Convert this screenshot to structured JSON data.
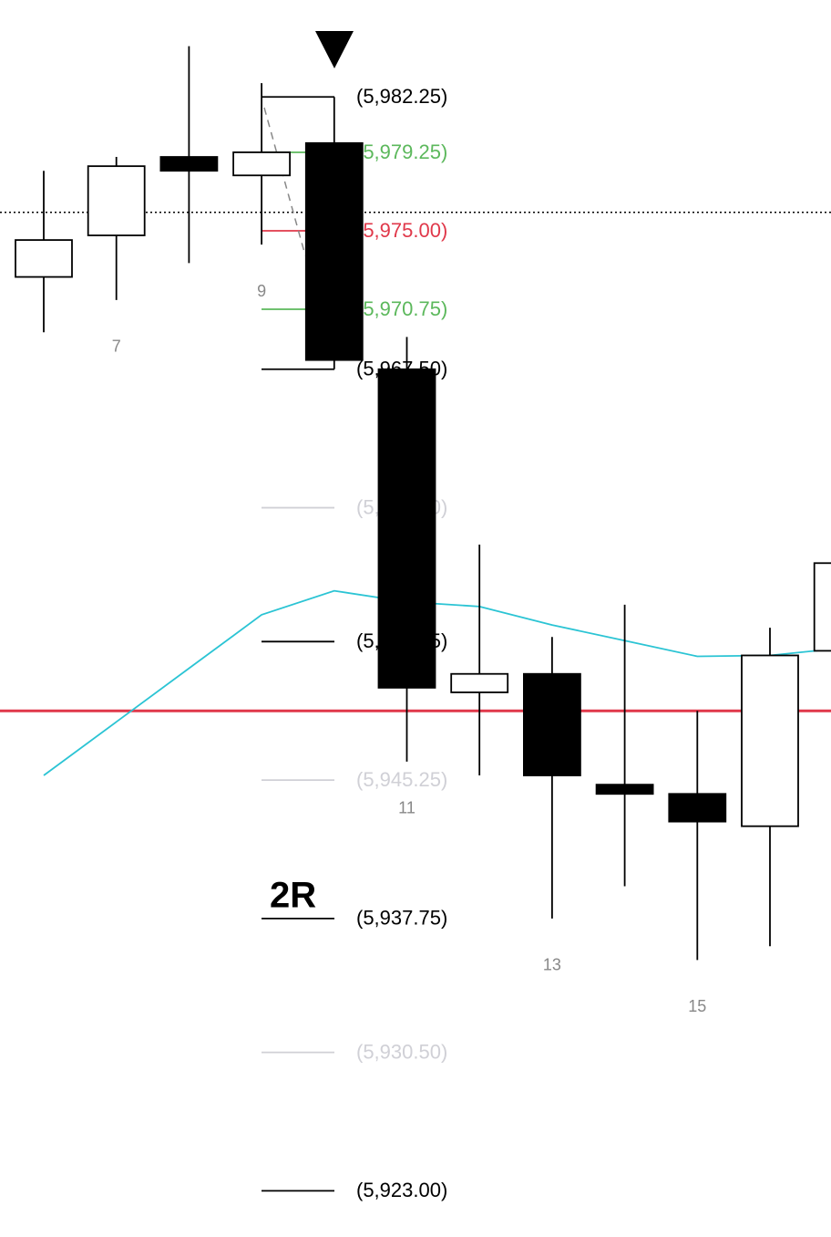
{
  "chart_data": {
    "type": "candlestick",
    "annotation": "2R",
    "ylim": [
      5920.5,
      5987.5
    ],
    "color": "#000000",
    "categories": [
      null,
      "7",
      null,
      "9",
      null,
      "11",
      null,
      "13",
      null,
      "15",
      null,
      null
    ],
    "open": [
      5972.5,
      5974.75,
      5979.0,
      5978.0,
      5979.75,
      5967.5,
      5950.0,
      5951.0,
      5945.0,
      5944.5,
      5942.75,
      5952.25
    ],
    "high": [
      5978.25,
      5979.0,
      5985.0,
      5983.0,
      5982.25,
      5969.25,
      5958.0,
      5953.0,
      5954.75,
      5949.0,
      5953.5,
      5957.0
    ],
    "low": [
      5969.5,
      5971.25,
      5973.25,
      5974.25,
      5967.5,
      5946.25,
      5945.5,
      5937.75,
      5939.5,
      5935.5,
      5936.25,
      5952.25
    ],
    "close": [
      5974.5,
      5978.5,
      5978.25,
      5979.25,
      5968.0,
      5950.25,
      5951.0,
      5945.5,
      5944.5,
      5943.0,
      5952.0,
      5957.0
    ],
    "line": {
      "color": "#2bc4d4",
      "values": [
        5945.5,
        5948.4,
        5951.3,
        5954.2,
        5955.5,
        5954.9,
        5954.65,
        5953.65,
        5952.8,
        5951.95,
        5952.0,
        5952.4
      ]
    },
    "hlines": [
      {
        "value": 5949.0,
        "color": "#e0384a",
        "style": "solid"
      },
      {
        "value": 5976.0,
        "color": "#000000",
        "style": "dotted"
      }
    ],
    "levels": [
      {
        "value": 5982.25,
        "label": "(5,982.25)",
        "color": "#000000"
      },
      {
        "value": 5979.25,
        "label": "(5,979.25)",
        "color": "#5cb85c"
      },
      {
        "value": 5975.0,
        "label": "(5,975.00)",
        "color": "#e0384a"
      },
      {
        "value": 5970.75,
        "label": "(5,970.75)",
        "color": "#5cb85c"
      },
      {
        "value": 5967.5,
        "label": "(5,967.50)",
        "color": "#000000"
      },
      {
        "value": 5960.0,
        "label": "(5,960.00)",
        "color": "#d0d0d6"
      },
      {
        "value": 5952.75,
        "label": "(5,952.75)",
        "color": "#000000"
      },
      {
        "value": 5945.25,
        "label": "(5,945.25)",
        "color": "#d0d0d6"
      },
      {
        "value": 5937.75,
        "label": "(5,937.75)",
        "color": "#000000"
      },
      {
        "value": 5930.5,
        "label": "(5,930.50)",
        "color": "#d0d0d6"
      },
      {
        "value": 5923.0,
        "label": "(5,923.00)",
        "color": "#000000"
      }
    ]
  }
}
